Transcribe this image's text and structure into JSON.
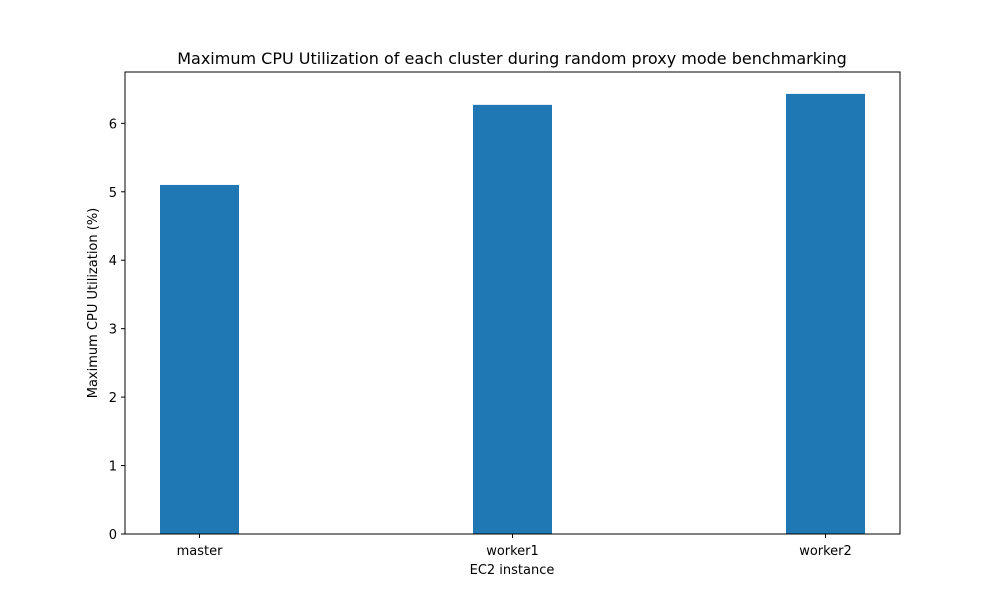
{
  "chart_data": {
    "type": "bar",
    "title": "Maximum CPU Utilization of each cluster during random proxy mode benchmarking",
    "xlabel": "EC2 instance",
    "ylabel": "Maximum CPU Utilization (%)",
    "categories": [
      "master",
      "worker1",
      "worker2"
    ],
    "values": [
      5.1,
      6.27,
      6.43
    ],
    "ylim": [
      0,
      6.75
    ],
    "yticks": [
      0,
      1,
      2,
      3,
      4,
      5,
      6
    ],
    "grid": false,
    "legend": "none",
    "bar_color": "#1f77b4"
  }
}
